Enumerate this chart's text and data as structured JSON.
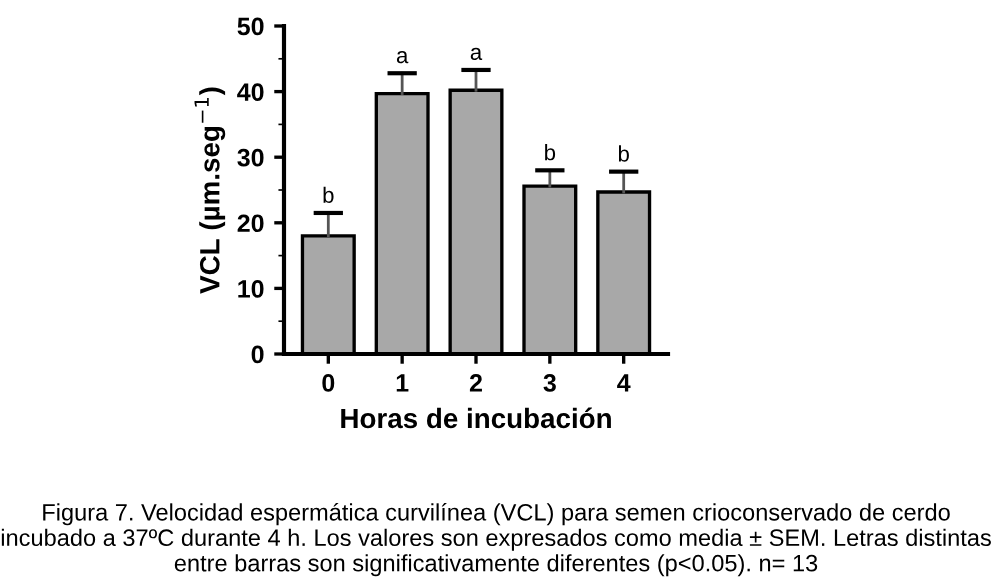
{
  "chart_data": {
    "type": "bar",
    "xlabel": "Horas de incubación",
    "ylabel": "VCL (µm.seg$^{−1}$)",
    "categories": [
      "0",
      "1",
      "2",
      "3",
      "4"
    ],
    "values": [
      18,
      39.7,
      40.2,
      25.6,
      24.7
    ],
    "errors": [
      [
        18,
        21.5
      ],
      [
        39.7,
        42.8
      ],
      [
        40.2,
        43.3
      ],
      [
        25.6,
        28
      ],
      [
        24.7,
        27.8
      ]
    ],
    "color": "#a8a8a8",
    "ylim": [
      0,
      50
    ],
    "yticks": [
      0,
      10,
      20,
      30,
      40,
      50
    ],
    "grid": false,
    "annotations": [
      {
        "text": "b",
        "x": "0",
        "y": 21.5
      },
      {
        "text": "a",
        "x": "1",
        "y": 42.8
      },
      {
        "text": "a",
        "x": "2",
        "y": 43.3
      },
      {
        "text": "b",
        "x": "3",
        "y": 28
      },
      {
        "text": "b",
        "x": "4",
        "y": 27.8
      },
      "Figura 7. Velocidad espermática curvilínea (VCL) para semen crioconservado de cerdo incubado a 37ºC durante 4 h. Los valores son expresados como media ± SEM. Letras distintas entre barras son significativamente diferentes (p<0.05). n= 13"
    ]
  }
}
